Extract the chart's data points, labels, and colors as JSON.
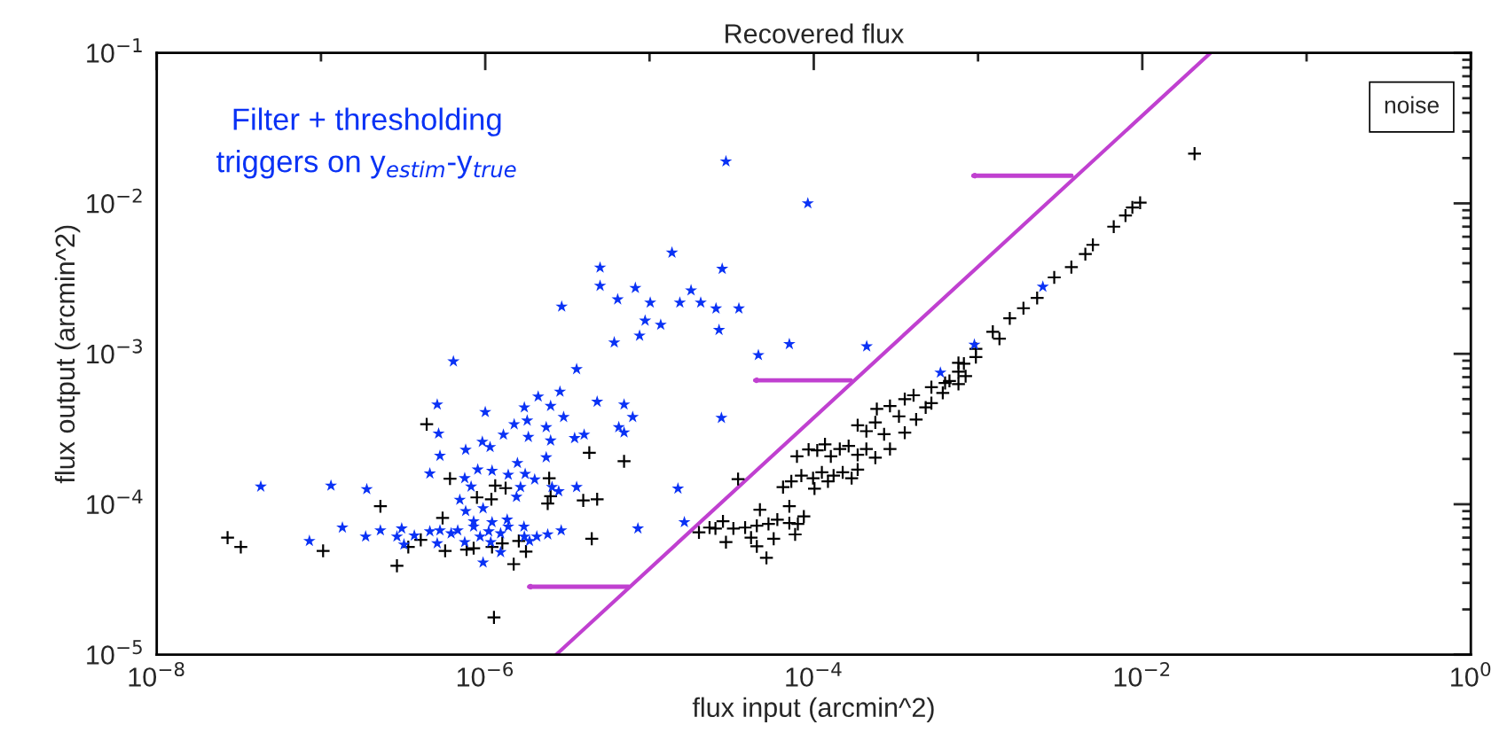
{
  "chart_data": {
    "type": "scatter",
    "title": "Recovered flux",
    "xlabel": "flux input (arcmin^2)",
    "ylabel": "flux output (arcmin^2)",
    "log": "xy",
    "grid": false,
    "xlim": [
      1e-08,
      1
    ],
    "ylim": [
      1e-05,
      0.1
    ],
    "xticks": [
      {
        "value": 1e-08,
        "label": "10$^{−8}$"
      },
      {
        "value": 1e-07,
        "label": null
      },
      {
        "value": 1e-06,
        "label": "10$^{−6}$"
      },
      {
        "value": 1e-05,
        "label": null
      },
      {
        "value": 0.0001,
        "label": "10$^{−4}$"
      },
      {
        "value": 0.001,
        "label": null
      },
      {
        "value": 0.01,
        "label": "10$^{−2}$"
      },
      {
        "value": 0.1,
        "label": null
      },
      {
        "value": 1,
        "label": "10$^{0}$"
      }
    ],
    "yticks": [
      {
        "value": 1e-05,
        "label": "10$^{−5}$"
      },
      {
        "value": 0.0001,
        "label": "10$^{−4}$"
      },
      {
        "value": 0.001,
        "label": "10$^{−3}$"
      },
      {
        "value": 0.01,
        "label": "10$^{−2}$"
      },
      {
        "value": 0.1,
        "label": "10$^{−1}$"
      }
    ],
    "annotations": [
      "Filter + thresholding\ntriggers on y$_{estim}$-y$_{true}$",
      "noise"
    ],
    "series": [
      {
        "color": "#000000",
        "marker": "cross",
        "x": [
          2.7e-08,
          3.25e-08,
          1.03e-07,
          2.3e-07,
          2.9e-07,
          4.4e-07,
          6.1e-07,
          5.5e-07,
          5.7e-07,
          3.4e-07,
          4.05e-07,
          7.7e-07,
          8.5e-07,
          8.9e-07,
          1.09e-06,
          1.15e-06,
          1.33e-06,
          1.1e-06,
          1.27e-06,
          1.49e-06,
          1.6e-06,
          1.77e-06,
          1.13e-06,
          2.4e-06,
          2.45e-06,
          2.5e-06,
          4.3e-06,
          7e-06,
          3.95e-06,
          4.8e-06,
          4.45e-06,
          3.46e-05,
          2e-05,
          2.32e-05,
          2.52e-05,
          2.8e-05,
          3.24e-05,
          3.82e-05,
          4.5e-05,
          5.3e-05,
          6e-05,
          7.1e-05,
          8e-05,
          8.7e-05,
          2.92e-05,
          4.15e-05,
          5.7e-05,
          7.7e-05,
          4.5e-05,
          5.15e-05,
          4.7e-05,
          7.1e-05,
          6.5e-05,
          7.3e-05,
          8.4e-05,
          9.9e-05,
          0.000112,
          0.000122,
          0.000132,
          0.00015,
          0.00017,
          0.000185,
          0.000101,
          7.9e-05,
          9.3e-05,
          0.000105,
          0.000117,
          0.000127,
          0.000144,
          0.000163,
          0.000185,
          0.000209,
          0.000237,
          0.000185,
          0.000209,
          0.000237,
          0.000242,
          0.000268,
          0.000291,
          0.000291,
          0.00033,
          0.000358,
          0.000358,
          0.000405,
          0.00042,
          0.00048,
          0.00052,
          0.00061,
          0.00067,
          0.00076,
          0.00082,
          0.00097,
          0.00076,
          0.00052,
          0.00063,
          0.00076,
          0.00097,
          0.00123,
          0.00156,
          0.00189,
          0.00229,
          0.00291,
          0.0037,
          0.0045,
          0.005,
          0.0067,
          0.0079,
          0.0087,
          0.0097,
          0.0208,
          0.00135,
          0.00084
        ],
        "values": [
          6e-05,
          5.2e-05,
          4.9e-05,
          9.7e-05,
          3.9e-05,
          0.00034,
          0.000148,
          8.1e-05,
          4.9e-05,
          5.2e-05,
          5.8e-05,
          5e-05,
          5.1e-05,
          0.000111,
          0.000108,
          0.000133,
          0.000128,
          5.2e-05,
          5.5e-05,
          4e-05,
          5.7e-05,
          4.85e-05,
          1.77e-05,
          0.000101,
          0.000149,
          0.000113,
          0.00022,
          0.000193,
          0.000106,
          0.000108,
          5.9e-05,
          0.000147,
          6.5e-05,
          7e-05,
          6.9e-05,
          7.7e-05,
          6.9e-05,
          7e-05,
          7.2e-05,
          7.4e-05,
          7.9e-05,
          7.5e-05,
          7.4e-05,
          8.3e-05,
          5.6e-05,
          6e-05,
          5.9e-05,
          6.3e-05,
          5.25e-05,
          4.4e-05,
          9.2e-05,
          9.7e-05,
          0.00013,
          0.000142,
          0.000155,
          0.000149,
          0.000163,
          0.000142,
          0.000155,
          0.000163,
          0.000149,
          0.00017,
          0.000127,
          0.000208,
          0.000231,
          0.000228,
          0.00025,
          0.000208,
          0.000233,
          0.000244,
          0.000213,
          0.000233,
          0.000204,
          0.000335,
          0.000306,
          0.00035,
          0.00043,
          0.000292,
          0.000233,
          0.00045,
          0.000384,
          0.0005,
          0.000299,
          0.00053,
          0.000366,
          0.00044,
          0.0006,
          0.00055,
          0.00066,
          0.00076,
          0.00086,
          0.00095,
          0.00063,
          0.00047,
          0.00064,
          0.00087,
          0.00108,
          0.0014,
          0.00172,
          0.00201,
          0.00235,
          0.00322,
          0.00377,
          0.0046,
          0.0053,
          0.007,
          0.0083,
          0.0094,
          0.0101,
          0.0214,
          0.00126,
          0.00071
        ]
      },
      {
        "color": "#0a32f5",
        "marker": "star",
        "x": [
          4.3e-08,
          1.15e-07,
          1.9e-07,
          6.4e-07,
          3.6e-06,
          5.1e-07,
          5.2e-07,
          5.3e-07,
          4.6e-07,
          1e-06,
          7.6e-07,
          9.6e-07,
          1.07e-06,
          1.29e-06,
          1.5e-06,
          1.73e-06,
          1.8e-06,
          2.1e-06,
          2.35e-06,
          2.5e-06,
          2.85e-06,
          3e-06,
          2.5e-06,
          1.83e-06,
          2.35e-06,
          4.8e-06,
          7e-06,
          6.5e-06,
          7e-06,
          7.9e-06,
          3.5e-06,
          4e-06,
          9e-07,
          1.1e-06,
          1.38e-06,
          1.57e-06,
          1.75e-06,
          2e-06,
          2.55e-06,
          2.8e-06,
          3.6e-06,
          7.5e-07,
          8.2e-07,
          1.64e-06,
          1.55e-06,
          7e-07,
          9.7e-07,
          7.6e-07,
          8.5e-07,
          1.1e-06,
          1.36e-06,
          8.5e-08,
          1.35e-07,
          1.87e-07,
          2.3e-07,
          3.1e-07,
          2.9e-07,
          3.7e-07,
          4.6e-07,
          5.3e-07,
          6.2e-07,
          6.8e-07,
          3.2e-07,
          5.1e-07,
          7.5e-07,
          8.5e-07,
          9.3e-07,
          1.05e-06,
          1.24e-06,
          1.38e-06,
          1.72e-06,
          1.73e-06,
          1.86e-06,
          2.06e-06,
          2.4e-06,
          2.9e-06,
          1.08e-06,
          1.24e-06,
          9.7e-07,
          8.5e-06,
          2.74e-05,
          1.49e-05,
          1.63e-05,
          0.00059,
          0.00095,
          0.00248,
          2.92e-05,
          9.2e-05,
          1.37e-05,
          5e-06,
          5e-06,
          2.77e-05,
          2.92e-06,
          6.4e-06,
          8.2e-06,
          1.01e-05,
          1.53e-05,
          1.79e-05,
          2.05e-05,
          2.54e-05,
          3.5e-05,
          9.4e-06,
          1.17e-05,
          8.7e-06,
          6.1e-06,
          2.65e-05,
          4.6e-05,
          7.1e-05,
          0.00021
        ],
        "values": [
          0.000131,
          0.000133,
          0.000126,
          0.00089,
          0.00079,
          0.00046,
          0.000295,
          0.00021,
          0.00016,
          0.00041,
          0.00023,
          0.00026,
          0.00024,
          0.00029,
          0.00034,
          0.00044,
          0.00036,
          0.00052,
          0.000325,
          0.00045,
          0.00056,
          0.00038,
          0.000265,
          0.00028,
          0.000205,
          0.00048,
          0.00046,
          0.000325,
          0.0003,
          0.00038,
          0.000275,
          0.00029,
          0.00017,
          0.000167,
          0.000157,
          0.000188,
          0.000159,
          0.000146,
          0.00013,
          0.000122,
          0.00013,
          0.000149,
          0.000131,
          0.00013,
          0.000112,
          0.000107,
          9.4e-05,
          9e-05,
          7.7e-05,
          7.6e-05,
          7.9e-05,
          5.7e-05,
          7e-05,
          6.1e-05,
          6.7e-05,
          6.9e-05,
          6.1e-05,
          6.2e-05,
          6.6e-05,
          6.7e-05,
          6.4e-05,
          6.7e-05,
          5.4e-05,
          5.5e-05,
          5.6e-05,
          7.1e-05,
          6.1e-05,
          6.6e-05,
          6.4e-05,
          7.1e-05,
          7.1e-05,
          6.1e-05,
          5.7e-05,
          6.1e-05,
          6.3e-05,
          6.7e-05,
          5.6e-05,
          4.8e-05,
          4.1e-05,
          6.9e-05,
          0.000375,
          0.000127,
          7.6e-05,
          0.00075,
          0.00115,
          0.00279,
          0.019,
          0.01,
          0.0047,
          0.00374,
          0.00283,
          0.00367,
          0.00206,
          0.0023,
          0.00274,
          0.00219,
          0.00219,
          0.00264,
          0.00219,
          0.002,
          0.002,
          0.00166,
          0.00156,
          0.00132,
          0.00119,
          0.00144,
          0.00098,
          0.00116,
          0.00112
        ]
      },
      {
        "type": "line",
        "color": "#c040d0",
        "marker": "none",
        "line_style": "solid",
        "x": [
          2.7e-06,
          0.026
        ],
        "values": [
          1e-05,
          0.1
        ]
      }
    ]
  }
}
